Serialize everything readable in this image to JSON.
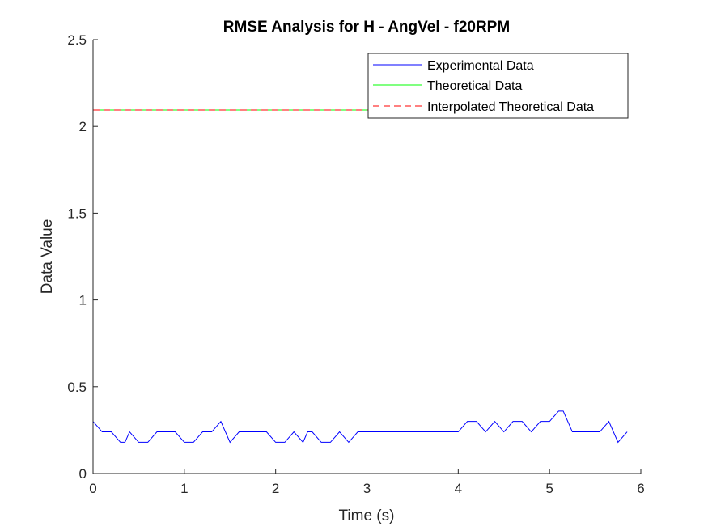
{
  "chart_data": {
    "type": "line",
    "title": "RMSE Analysis for H - AngVel - f20RPM",
    "xlabel": "Time (s)",
    "ylabel": "Data Value",
    "xlim": [
      0,
      6
    ],
    "ylim": [
      0,
      2.5
    ],
    "xticks": [
      "0",
      "1",
      "2",
      "3",
      "4",
      "5",
      "6"
    ],
    "yticks": [
      "0",
      "0.5",
      "1",
      "1.5",
      "2",
      "2.5"
    ],
    "grid": false,
    "legend_position": "top-right",
    "series": [
      {
        "name": "Experimental Data",
        "color": "#0000ff",
        "style": "solid",
        "x": [
          0,
          0.1,
          0.2,
          0.3,
          0.35,
          0.4,
          0.5,
          0.6,
          0.7,
          0.8,
          0.9,
          1.0,
          1.1,
          1.2,
          1.3,
          1.4,
          1.5,
          1.6,
          1.7,
          1.8,
          1.9,
          2.0,
          2.1,
          2.2,
          2.3,
          2.35,
          2.4,
          2.5,
          2.6,
          2.7,
          2.8,
          2.9,
          3.0,
          3.5,
          4.0,
          4.1,
          4.2,
          4.3,
          4.4,
          4.5,
          4.6,
          4.7,
          4.8,
          4.9,
          5.0,
          5.1,
          5.15,
          5.25,
          5.4,
          5.55,
          5.65,
          5.75,
          5.85
        ],
        "y": [
          0.3,
          0.24,
          0.24,
          0.18,
          0.18,
          0.24,
          0.18,
          0.18,
          0.24,
          0.24,
          0.24,
          0.18,
          0.18,
          0.24,
          0.24,
          0.3,
          0.18,
          0.24,
          0.24,
          0.24,
          0.24,
          0.18,
          0.18,
          0.24,
          0.18,
          0.24,
          0.24,
          0.18,
          0.18,
          0.24,
          0.18,
          0.24,
          0.24,
          0.24,
          0.24,
          0.3,
          0.3,
          0.24,
          0.3,
          0.24,
          0.3,
          0.3,
          0.24,
          0.3,
          0.3,
          0.36,
          0.36,
          0.24,
          0.24,
          0.24,
          0.3,
          0.18,
          0.24
        ]
      },
      {
        "name": "Theoretical Data",
        "color": "#00ff00",
        "style": "solid",
        "x": [
          0,
          5.85
        ],
        "y": [
          2.094,
          2.094
        ]
      },
      {
        "name": "Interpolated Theoretical Data",
        "color": "#ff0000",
        "style": "dashed",
        "x": [
          0,
          5.85
        ],
        "y": [
          2.094,
          2.094
        ]
      }
    ]
  }
}
